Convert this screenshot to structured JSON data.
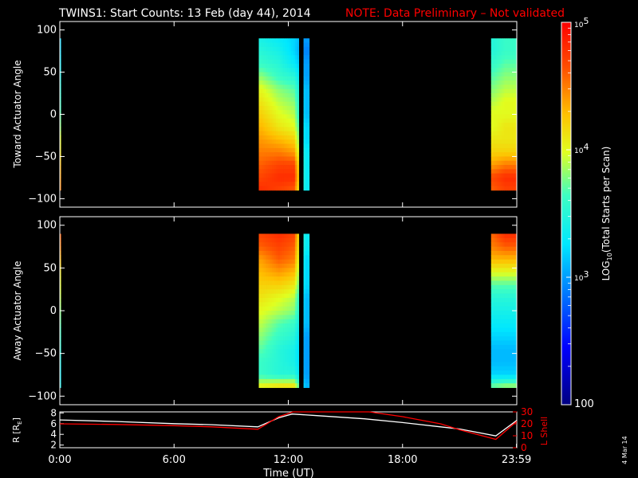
{
  "header": {
    "title": "TWINS1: Start Counts: 13 Feb (day  44), 2014",
    "note": "NOTE: Data Preliminary – Not validated",
    "title_color": "#ffffff",
    "note_color": "#ff0000"
  },
  "footer": {
    "stamp": "4 Mar 14"
  },
  "colors": {
    "background": "#000000",
    "axes": "#ffffff",
    "r_line": "#ffffff",
    "lshell_line": "#ff0000"
  },
  "chart_data": [
    {
      "type": "heatmap",
      "panel": "toward",
      "ylabel": "Toward Actuator Angle",
      "ylim": [
        -110,
        110
      ],
      "yticks": [
        -100,
        -50,
        0,
        50,
        100
      ],
      "xlim": [
        0,
        24
      ],
      "x_unit": "hours UT",
      "angle_range": [
        -90,
        90
      ],
      "coverage": [
        [
          0,
          0.05
        ],
        [
          10.45,
          12.6
        ],
        [
          12.8,
          13.1
        ],
        [
          22.65,
          24
        ]
      ],
      "gaps": [
        [
          12.5,
          12.72
        ]
      ],
      "angles": [
        90,
        75,
        60,
        45,
        30,
        15,
        0,
        -15,
        -30,
        -45,
        -60,
        -75,
        -90
      ],
      "times": [
        0,
        10.6,
        11.5,
        12.3,
        12.9,
        22.8,
        23.4
      ],
      "log10_counts": [
        [
          3.2,
          3.4,
          3.3,
          3.2,
          3.0,
          3.5,
          3.6
        ],
        [
          3.2,
          3.5,
          3.4,
          3.2,
          2.9,
          3.5,
          3.6
        ],
        [
          3.3,
          3.6,
          3.5,
          3.3,
          3.0,
          3.6,
          3.7
        ],
        [
          3.4,
          3.8,
          3.6,
          3.5,
          3.0,
          3.7,
          3.8
        ],
        [
          3.5,
          4.0,
          3.8,
          3.7,
          3.1,
          3.8,
          3.9
        ],
        [
          3.6,
          4.1,
          3.9,
          3.8,
          3.1,
          3.9,
          4.0
        ],
        [
          3.7,
          4.2,
          4.0,
          3.9,
          3.1,
          4.0,
          4.0
        ],
        [
          3.8,
          4.3,
          4.1,
          4.0,
          3.2,
          4.0,
          4.1
        ],
        [
          4.0,
          4.4,
          4.3,
          4.2,
          3.2,
          4.1,
          4.1
        ],
        [
          4.1,
          4.5,
          4.5,
          4.4,
          3.3,
          4.2,
          4.2
        ],
        [
          4.3,
          4.6,
          4.7,
          4.7,
          3.3,
          4.4,
          4.5
        ],
        [
          4.4,
          4.7,
          4.8,
          4.8,
          3.3,
          4.7,
          4.8
        ],
        [
          4.5,
          4.8,
          4.7,
          4.6,
          3.3,
          4.6,
          4.7
        ]
      ]
    },
    {
      "type": "heatmap",
      "panel": "away",
      "ylabel": "Away Actuator Angle",
      "ylim": [
        -110,
        110
      ],
      "yticks": [
        -100,
        -50,
        0,
        50,
        100
      ],
      "xlim": [
        0,
        24
      ],
      "x_unit": "hours UT",
      "angle_range": [
        -90,
        90
      ],
      "coverage": [
        [
          0,
          0.05
        ],
        [
          10.45,
          12.6
        ],
        [
          12.8,
          13.1
        ],
        [
          22.65,
          24
        ]
      ],
      "gaps": [
        [
          12.5,
          12.72
        ]
      ],
      "angles": [
        90,
        75,
        60,
        45,
        30,
        15,
        0,
        -15,
        -30,
        -45,
        -60,
        -75,
        -90
      ],
      "times": [
        0,
        10.6,
        11.5,
        12.3,
        12.9,
        22.8,
        23.4
      ],
      "log10_counts": [
        [
          4.6,
          4.7,
          4.8,
          4.7,
          3.3,
          4.6,
          4.8
        ],
        [
          4.5,
          4.6,
          4.7,
          4.6,
          3.3,
          4.5,
          4.6
        ],
        [
          4.3,
          4.4,
          4.6,
          4.5,
          3.2,
          4.3,
          4.3
        ],
        [
          4.1,
          4.3,
          4.4,
          4.3,
          3.2,
          4.0,
          4.0
        ],
        [
          4.0,
          4.2,
          4.2,
          4.1,
          3.2,
          3.7,
          3.7
        ],
        [
          3.9,
          4.1,
          4.0,
          3.9,
          3.1,
          3.5,
          3.5
        ],
        [
          3.8,
          4.0,
          3.9,
          3.8,
          3.1,
          3.4,
          3.4
        ],
        [
          3.7,
          3.9,
          3.7,
          3.6,
          3.1,
          3.3,
          3.3
        ],
        [
          3.6,
          3.8,
          3.6,
          3.5,
          3.0,
          3.2,
          3.2
        ],
        [
          3.5,
          3.7,
          3.5,
          3.4,
          3.0,
          3.1,
          3.1
        ],
        [
          3.4,
          3.6,
          3.5,
          3.4,
          3.0,
          3.1,
          3.1
        ],
        [
          3.3,
          3.6,
          3.5,
          3.5,
          3.0,
          3.2,
          3.2
        ],
        [
          3.4,
          4.1,
          4.2,
          4.2,
          3.1,
          3.8,
          3.9
        ]
      ]
    },
    {
      "type": "line",
      "panel": "orbit",
      "xlabel": "Time (UT)",
      "xticks": [
        {
          "value": 0,
          "label": "0:00"
        },
        {
          "value": 6,
          "label": "6:00"
        },
        {
          "value": 12,
          "label": "12:00"
        },
        {
          "value": 18,
          "label": "18:00"
        },
        {
          "value": 23.983,
          "label": "23:59"
        }
      ],
      "xlim": [
        0,
        24
      ],
      "left_axis": {
        "label": "R [R",
        "label_sub": "E",
        "label_end": "]",
        "ylim": [
          1.5,
          8.2
        ],
        "yticks": [
          2,
          4,
          6,
          8
        ]
      },
      "right_axis": {
        "label": "L Shell",
        "ylim": [
          0,
          30
        ],
        "yticks": [
          0,
          10,
          20,
          30
        ]
      },
      "series": [
        {
          "axis": "left",
          "color": "#ffffff",
          "x": [
            0,
            3,
            6,
            8,
            10.4,
            11.5,
            12.2,
            13.5,
            16,
            18,
            20,
            21,
            22.9,
            24
          ],
          "y": [
            6.7,
            6.4,
            6.0,
            5.8,
            5.4,
            7.1,
            7.8,
            7.5,
            6.9,
            6.2,
            5.4,
            5.0,
            3.7,
            6.6
          ]
        },
        {
          "axis": "right",
          "color": "#ff0000",
          "x": [
            0,
            3,
            6,
            8,
            10.4,
            11.5,
            12.25,
            16.25,
            18,
            20,
            21,
            22.9,
            24
          ],
          "y": [
            20,
            19.5,
            18.5,
            17.5,
            15.5,
            26,
            31,
            31,
            26,
            20,
            15,
            7,
            22
          ]
        }
      ]
    },
    {
      "type": "colorbar",
      "label": "LOG",
      "label_sub": "10",
      "label_rest": "(Total Starts per Scan)",
      "range_log10": [
        2,
        5
      ],
      "tick_labels": [
        {
          "value": 5,
          "base": "10",
          "exp": "5"
        },
        {
          "value": 4,
          "base": "10",
          "exp": "4"
        },
        {
          "value": 3,
          "base": "10",
          "exp": "3"
        },
        {
          "value": 2,
          "base": "100",
          "exp": ""
        }
      ]
    }
  ]
}
